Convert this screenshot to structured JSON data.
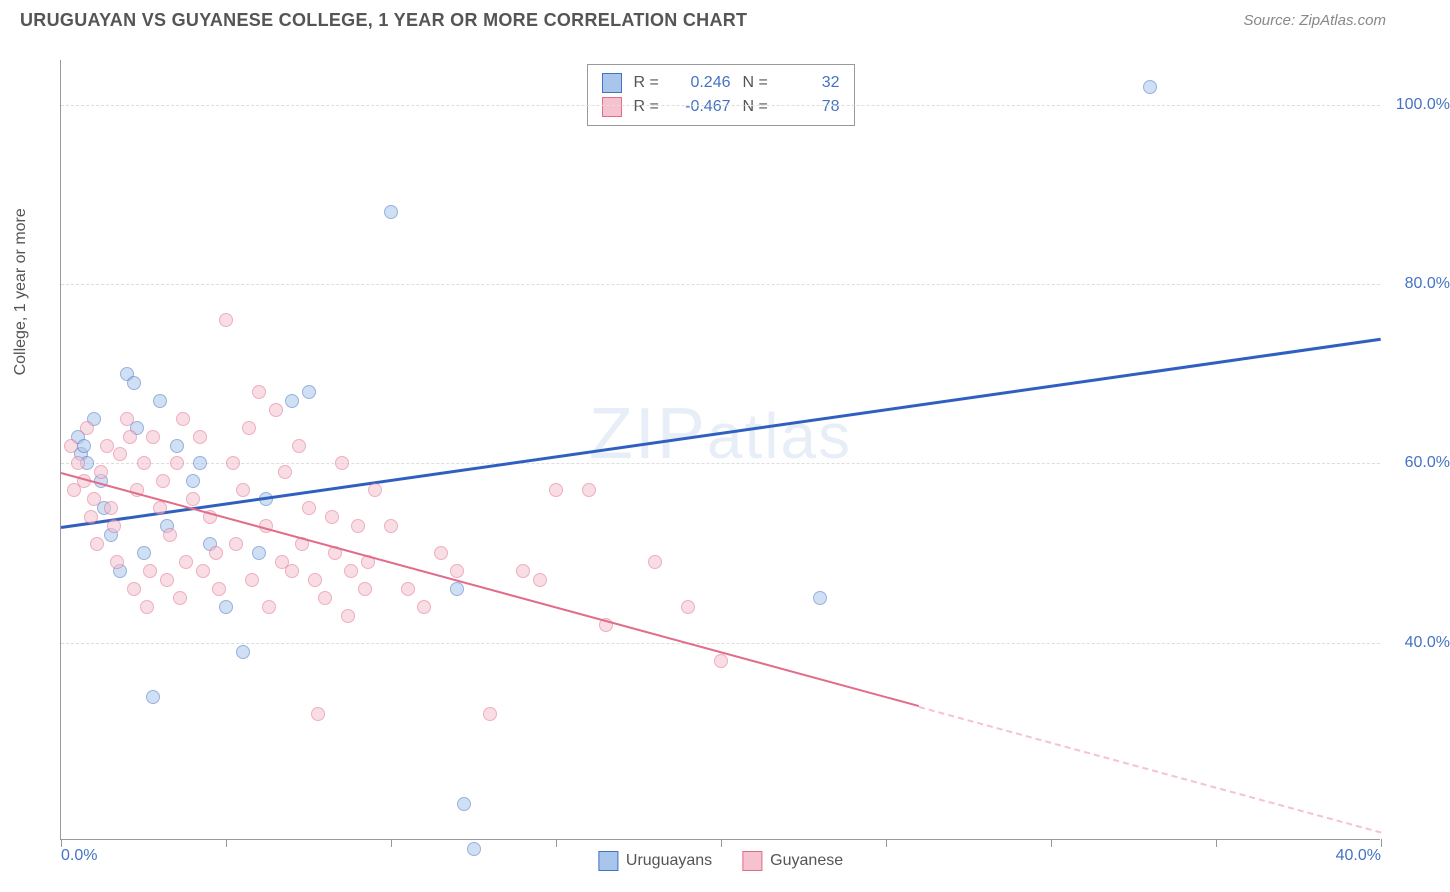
{
  "title": "URUGUAYAN VS GUYANESE COLLEGE, 1 YEAR OR MORE CORRELATION CHART",
  "source": "Source: ZipAtlas.com",
  "watermark": "ZIPatlas",
  "y_axis_label": "College, 1 year or more",
  "chart": {
    "type": "scatter",
    "xlim": [
      0,
      40
    ],
    "ylim": [
      18,
      105
    ],
    "x_ticks": [
      0,
      5,
      10,
      15,
      20,
      25,
      30,
      35,
      40
    ],
    "x_tick_labels": [
      "0.0%",
      "",
      "",
      "",
      "",
      "",
      "",
      "",
      "40.0%"
    ],
    "y_grid": [
      40,
      60,
      80,
      100
    ],
    "y_tick_labels": [
      "40.0%",
      "60.0%",
      "80.0%",
      "100.0%"
    ],
    "background_color": "#ffffff",
    "grid_color": "#dddddd",
    "marker_radius": 7,
    "marker_opacity": 0.55,
    "series": [
      {
        "name": "Uruguayans",
        "color_fill": "#a8c5ec",
        "color_stroke": "#4472c4",
        "trend": {
          "x1": 0,
          "y1": 53,
          "x2": 40,
          "y2": 74,
          "color": "#2f5fbf",
          "width": 2.5
        },
        "R": "0.246",
        "N": "32",
        "points": [
          [
            0.5,
            63
          ],
          [
            0.6,
            61
          ],
          [
            0.8,
            60
          ],
          [
            1,
            65
          ],
          [
            1.2,
            58
          ],
          [
            1.3,
            55
          ],
          [
            1.5,
            52
          ],
          [
            2,
            70
          ],
          [
            2.2,
            69
          ],
          [
            2.5,
            50
          ],
          [
            2.8,
            34
          ],
          [
            3,
            67
          ],
          [
            3.5,
            62
          ],
          [
            4,
            58
          ],
          [
            4.5,
            51
          ],
          [
            5,
            44
          ],
          [
            5.5,
            39
          ],
          [
            6,
            50
          ],
          [
            6.2,
            56
          ],
          [
            7,
            67
          ],
          [
            7.5,
            68
          ],
          [
            10,
            88
          ],
          [
            12,
            46
          ],
          [
            12.2,
            22
          ],
          [
            12.5,
            17
          ],
          [
            23,
            45
          ],
          [
            33,
            102
          ],
          [
            1.8,
            48
          ],
          [
            2.3,
            64
          ],
          [
            3.2,
            53
          ],
          [
            4.2,
            60
          ],
          [
            0.7,
            62
          ]
        ]
      },
      {
        "name": "Guyanese",
        "color_fill": "#f5c2cf",
        "color_stroke": "#e26d8a",
        "trend": {
          "x1": 0,
          "y1": 59,
          "x2": 26,
          "y2": 33,
          "color": "#e26d8a",
          "width": 2
        },
        "trend_ext": {
          "x1": 26,
          "y1": 33,
          "x2": 40,
          "y2": 19,
          "color": "#f5c2cf",
          "width": 1
        },
        "R": "-0.467",
        "N": "78",
        "points": [
          [
            0.3,
            62
          ],
          [
            0.5,
            60
          ],
          [
            0.7,
            58
          ],
          [
            0.8,
            64
          ],
          [
            1,
            56
          ],
          [
            1.2,
            59
          ],
          [
            1.4,
            62
          ],
          [
            1.5,
            55
          ],
          [
            1.6,
            53
          ],
          [
            1.8,
            61
          ],
          [
            2,
            65
          ],
          [
            2.1,
            63
          ],
          [
            2.3,
            57
          ],
          [
            2.5,
            60
          ],
          [
            2.7,
            48
          ],
          [
            2.8,
            63
          ],
          [
            3,
            55
          ],
          [
            3.1,
            58
          ],
          [
            3.3,
            52
          ],
          [
            3.5,
            60
          ],
          [
            3.7,
            65
          ],
          [
            3.8,
            49
          ],
          [
            4,
            56
          ],
          [
            4.2,
            63
          ],
          [
            4.5,
            54
          ],
          [
            4.7,
            50
          ],
          [
            5,
            76
          ],
          [
            5.2,
            60
          ],
          [
            5.5,
            57
          ],
          [
            5.7,
            64
          ],
          [
            6,
            68
          ],
          [
            6.2,
            53
          ],
          [
            6.5,
            66
          ],
          [
            6.8,
            59
          ],
          [
            7,
            48
          ],
          [
            7.2,
            62
          ],
          [
            7.5,
            55
          ],
          [
            7.8,
            32
          ],
          [
            8,
            45
          ],
          [
            8.2,
            54
          ],
          [
            8.5,
            60
          ],
          [
            8.7,
            43
          ],
          [
            9,
            53
          ],
          [
            9.3,
            49
          ],
          [
            9.5,
            57
          ],
          [
            10,
            53
          ],
          [
            10.5,
            46
          ],
          [
            11,
            44
          ],
          [
            11.5,
            50
          ],
          [
            12,
            48
          ],
          [
            13,
            32
          ],
          [
            14,
            48
          ],
          [
            14.5,
            47
          ],
          [
            15,
            57
          ],
          [
            16,
            57
          ],
          [
            16.5,
            42
          ],
          [
            18,
            49
          ],
          [
            19,
            44
          ],
          [
            20,
            38
          ],
          [
            0.4,
            57
          ],
          [
            0.9,
            54
          ],
          [
            1.1,
            51
          ],
          [
            1.7,
            49
          ],
          [
            2.2,
            46
          ],
          [
            2.6,
            44
          ],
          [
            3.2,
            47
          ],
          [
            3.6,
            45
          ],
          [
            4.3,
            48
          ],
          [
            4.8,
            46
          ],
          [
            5.3,
            51
          ],
          [
            5.8,
            47
          ],
          [
            6.3,
            44
          ],
          [
            6.7,
            49
          ],
          [
            7.3,
            51
          ],
          [
            7.7,
            47
          ],
          [
            8.3,
            50
          ],
          [
            8.8,
            48
          ],
          [
            9.2,
            46
          ]
        ]
      }
    ]
  },
  "legend": {
    "items": [
      {
        "label": "Uruguayans",
        "fill": "#a8c5ec",
        "stroke": "#4472c4"
      },
      {
        "label": "Guyanese",
        "fill": "#f5c2cf",
        "stroke": "#e26d8a"
      }
    ]
  }
}
